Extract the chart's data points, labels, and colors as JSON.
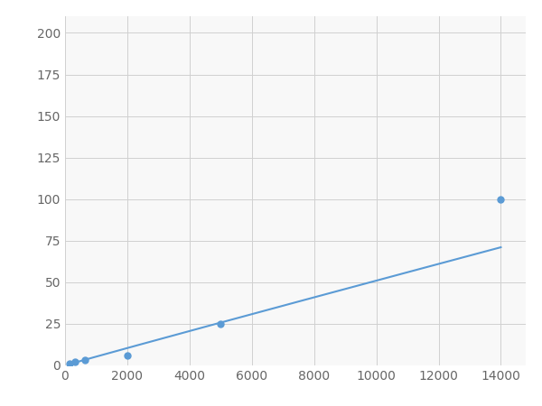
{
  "x_points": [
    156,
    312,
    625,
    2000,
    5000,
    14000
  ],
  "y_points": [
    1.0,
    2.0,
    3.0,
    6.0,
    25.0,
    100.0
  ],
  "line_color": "#5b9bd5",
  "marker_color": "#5b9bd5",
  "marker_size": 5,
  "line_width": 1.5,
  "xlim": [
    0,
    14800
  ],
  "ylim": [
    0,
    210
  ],
  "xticks": [
    0,
    2000,
    4000,
    6000,
    8000,
    10000,
    12000,
    14000
  ],
  "yticks": [
    0,
    25,
    50,
    75,
    100,
    125,
    150,
    175,
    200
  ],
  "grid_color": "#d0d0d0",
  "grid_linewidth": 0.7,
  "background_color": "#f8f8f8",
  "fig_background": "#ffffff",
  "tick_fontsize": 10,
  "tick_color": "#666666"
}
